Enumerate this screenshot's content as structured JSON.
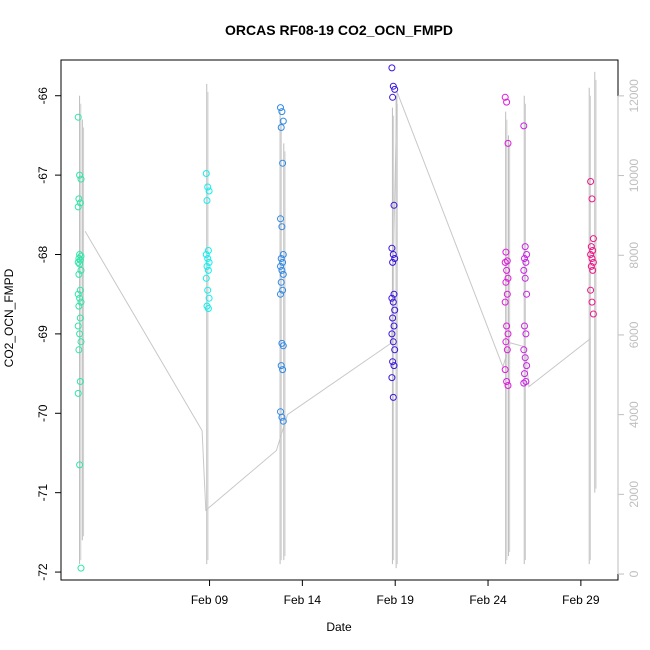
{
  "chart_data": {
    "type": "scatter",
    "title": "ORCAS RF08-19 CO2_OCN_FMPD",
    "xlabel": "Date",
    "ylabel": "CO2_OCN_FMPD",
    "xlim": [
      "2016-02-01",
      "2016-03-02"
    ],
    "ylim": [
      -72.1,
      -65.55
    ],
    "y2lim": [
      -150,
      12900
    ],
    "x_ticks": [
      {
        "date": "2016-02-09",
        "label": "Feb 09"
      },
      {
        "date": "2016-02-14",
        "label": "Feb 14"
      },
      {
        "date": "2016-02-19",
        "label": "Feb 19"
      },
      {
        "date": "2016-02-24",
        "label": "Feb 24"
      },
      {
        "date": "2016-02-29",
        "label": "Feb 29"
      }
    ],
    "y_ticks": [
      -72,
      -71,
      -70,
      -69,
      -68,
      -67,
      -66
    ],
    "y2_ticks": [
      0,
      2000,
      4000,
      6000,
      8000,
      10000,
      12000
    ],
    "series": [
      {
        "color": "#2fe6a8",
        "x": "2016-02-02",
        "y": [
          -66.27,
          -67.0,
          -67.05,
          -67.3,
          -67.35,
          -67.4,
          -68.0,
          -68.02,
          -68.05,
          -68.07,
          -68.1,
          -68.12,
          -68.2,
          -68.25,
          -68.45,
          -68.5,
          -68.55,
          -68.6,
          -68.65,
          -68.8,
          -68.9,
          -69.0,
          -69.1,
          -69.2,
          -69.6,
          -69.75,
          -70.65,
          -71.95
        ]
      },
      {
        "color": "#11f0f0",
        "x": "2016-02-08.9",
        "y": [
          -66.98,
          -67.15,
          -67.2,
          -67.32,
          -67.95,
          -68.0,
          -68.05,
          -68.1,
          -68.15,
          -68.2,
          -68.3,
          -68.45,
          -68.55,
          -68.65,
          -68.68
        ]
      },
      {
        "color": "#2f8be8",
        "x": "2016-02-12.9",
        "y": [
          -66.15,
          -66.2,
          -66.32,
          -66.4,
          -66.85,
          -67.55,
          -67.65,
          -68.0,
          -68.05,
          -68.1,
          -68.15,
          -68.2,
          -68.25,
          -68.35,
          -68.45,
          -68.5,
          -69.12,
          -69.15,
          -69.4,
          -69.45,
          -69.98,
          -70.05,
          -70.1
        ]
      },
      {
        "color": "#3a14e0",
        "x": "2016-02-18.9",
        "y": [
          -65.65,
          -65.88,
          -65.92,
          -66.02,
          -67.38,
          -67.92,
          -68.0,
          -68.05,
          -68.1,
          -68.5,
          -68.55,
          -68.6,
          -68.7,
          -68.8,
          -68.9,
          -69.0,
          -69.1,
          -69.2,
          -69.35,
          -69.4,
          -69.55,
          -69.8
        ]
      },
      {
        "color": "#e01adc",
        "x": "2016-02-25",
        "y": [
          -66.02,
          -66.08,
          -66.6,
          -67.97,
          -68.08,
          -68.1,
          -68.2,
          -68.3,
          -68.35,
          -68.5,
          -68.6,
          -68.9,
          -69.0,
          -69.1,
          -69.2,
          -69.45,
          -69.6,
          -69.65
        ]
      },
      {
        "color": "#cc22e6",
        "x": "2016-02-26",
        "y": [
          -66.38,
          -67.9,
          -68.0,
          -68.05,
          -68.1,
          -68.2,
          -68.3,
          -68.5,
          -68.9,
          -69.0,
          -69.2,
          -69.3,
          -69.4,
          -69.5,
          -69.6,
          -69.62
        ]
      },
      {
        "color": "#f0168a",
        "x": "2016-02-29.6",
        "y": [
          -67.08,
          -67.3,
          -67.8,
          -67.9,
          -67.95,
          -68.0,
          -68.05,
          -68.1,
          -68.15,
          -68.2,
          -68.45,
          -68.6,
          -68.75
        ]
      }
    ],
    "gray_line": {
      "color": "#c8c8c8",
      "axis": "right",
      "points": [
        {
          "x": "2016-02-02.3",
          "y": 8600
        },
        {
          "x": "2016-02-08.6",
          "y": 3600
        },
        {
          "x": "2016-02-08.8",
          "y": 1600
        },
        {
          "x": "2016-02-12.6",
          "y": 3100
        },
        {
          "x": "2016-02-13.2",
          "y": 4000
        },
        {
          "x": "2016-02-18.8",
          "y": 5800
        },
        {
          "x": "2016-02-19.1",
          "y": 12100
        },
        {
          "x": "2016-02-24.8",
          "y": 5200
        },
        {
          "x": "2016-02-25.2",
          "y": 5800
        },
        {
          "x": "2016-02-26.0",
          "y": 5700
        },
        {
          "x": "2016-02-26.2",
          "y": 4700
        },
        {
          "x": "2016-02-29.5",
          "y": 5900
        }
      ]
    },
    "gray_spikes": [
      {
        "x": "2016-02-02.0",
        "min": -71.9,
        "max": -66.0
      },
      {
        "x": "2016-02-02.15",
        "min": -71.6,
        "max": -66.3
      },
      {
        "x": "2016-02-08.85",
        "min": -71.9,
        "max": -65.85
      },
      {
        "x": "2016-02-12.8",
        "min": -71.9,
        "max": -66.2
      },
      {
        "x": "2016-02-13.0",
        "min": -71.85,
        "max": -66.6
      },
      {
        "x": "2016-02-18.85",
        "min": -71.9,
        "max": -66.15
      },
      {
        "x": "2016-02-19.05",
        "min": -71.95,
        "max": -66.0
      },
      {
        "x": "2016-02-24.95",
        "min": -71.9,
        "max": -66.2
      },
      {
        "x": "2016-02-25.1",
        "min": -71.8,
        "max": -66.5
      },
      {
        "x": "2016-02-25.95",
        "min": -71.9,
        "max": -66.0
      },
      {
        "x": "2016-02-29.45",
        "min": -71.9,
        "max": -65.9
      },
      {
        "x": "2016-02-29.75",
        "min": -71.0,
        "max": -65.7
      }
    ]
  }
}
